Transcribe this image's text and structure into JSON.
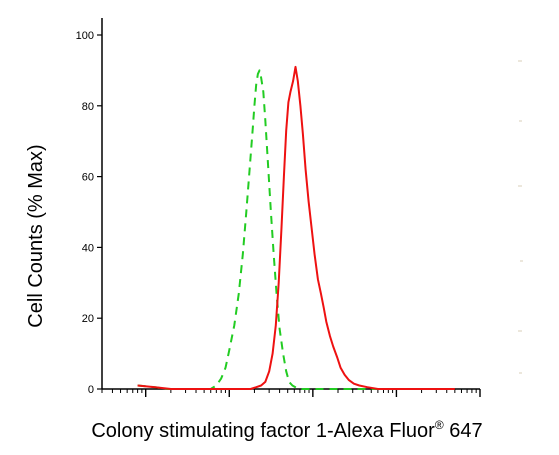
{
  "chart_data": {
    "type": "line",
    "title": "",
    "xlabel": "Colony stimulating factor 1-Alexa Fluor",
    "xlabel_superscript": "®",
    "xlabel_suffix": " 647",
    "ylabel": "Cell Counts (% Max)",
    "ylim": [
      0,
      100
    ],
    "yticks": [
      "0",
      "20",
      "40",
      "60",
      "80",
      "100"
    ],
    "xscale": "log",
    "xlim": [
      0.3,
      10000
    ],
    "grid": false,
    "legend": "none",
    "series": [
      {
        "color": "#22cc22",
        "style": "dashed",
        "x": [
          0.8,
          1.3,
          1.8,
          2.3,
          2.8,
          3.3,
          3.8,
          4.3,
          5.0,
          6.0,
          7.0,
          8.0,
          9.0,
          10.0,
          11.5,
          13.0,
          14.5,
          16.0,
          17.5,
          19.0,
          20.0,
          21.0,
          22.0,
          23.0,
          24.0,
          25.5,
          27.0,
          29.0,
          31.5,
          34.0,
          37.0,
          40.0,
          44.0,
          48.0,
          52.0,
          57.0,
          62.0,
          68.0,
          76.0,
          86.0,
          100.0,
          150.0,
          300.0,
          1000.0,
          5000.0
        ],
        "y": [
          1,
          0.5,
          0,
          0,
          0,
          0,
          0,
          0,
          0,
          0,
          1,
          3,
          6,
          11,
          18,
          27,
          38,
          50,
          62,
          73,
          80,
          86,
          89,
          90,
          88,
          84,
          76,
          64,
          50,
          38,
          26,
          17,
          10,
          5,
          2,
          1,
          0.5,
          0,
          0,
          0,
          0,
          0,
          0,
          0,
          0
        ]
      },
      {
        "color": "#ee1111",
        "style": "solid",
        "x": [
          0.8,
          1.3,
          2.0,
          5.0,
          10.0,
          15.0,
          18.0,
          21.0,
          24.0,
          27.0,
          30.0,
          33.0,
          36.0,
          39.0,
          42.0,
          45.0,
          48.0,
          51.0,
          54.0,
          58.0,
          62.0,
          66.0,
          71.0,
          76.0,
          82.0,
          89.0,
          96.0,
          105.0,
          115.0,
          125.0,
          135.0,
          145.0,
          160.0,
          175.0,
          195.0,
          215.0,
          240.0,
          270.0,
          310.0,
          360.0,
          450.0,
          600.0,
          900.0,
          2000.0,
          5000.0
        ],
        "y": [
          1,
          0.5,
          0,
          0,
          0,
          0,
          0,
          0.5,
          1,
          2,
          5,
          10,
          18,
          30,
          45,
          60,
          73,
          81,
          84,
          87,
          91,
          87,
          80,
          72,
          62,
          53,
          46,
          38,
          31,
          27,
          23,
          19,
          15,
          12,
          9,
          6,
          4,
          2.5,
          1.5,
          1,
          0.5,
          0,
          0,
          0,
          0
        ]
      }
    ]
  }
}
